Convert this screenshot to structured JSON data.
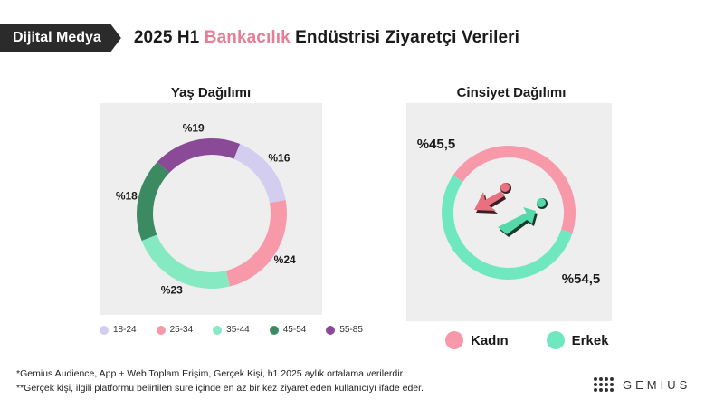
{
  "header": {
    "tag": "Dijital Medya",
    "title_prefix": "2025 H1",
    "title_accent": "Bankacılık",
    "title_suffix": "Endüstrisi Ziyaretçi Verileri"
  },
  "colors": {
    "c18_24": "#d3cdf0",
    "c25_34": "#f799a8",
    "c35_44": "#85eac1",
    "c45_54": "#3c8a62",
    "c55_85": "#8a4a98",
    "female": "#f799a8",
    "male": "#6fe8c0",
    "icon_female": "#e8707f",
    "icon_male": "#56d9aa",
    "accent": "#e57f95"
  },
  "icons": [
    "female-symbol-icon",
    "male-symbol-icon"
  ],
  "chart_data": [
    {
      "type": "pie",
      "style": "donut",
      "title": "Yaş Dağılımı",
      "categories": [
        "18-24",
        "25-34",
        "35-44",
        "45-54",
        "55-85"
      ],
      "values": [
        16,
        24,
        23,
        18,
        19
      ],
      "labels": [
        "%16",
        "%24",
        "%23",
        "%18",
        "%19"
      ],
      "legend_position": "bottom"
    },
    {
      "type": "pie",
      "style": "donut",
      "title": "Cinsiyet Dağılımı",
      "categories": [
        "Kadın",
        "Erkek"
      ],
      "values": [
        45.5,
        54.5
      ],
      "labels": [
        "%45,5",
        "%54,5"
      ],
      "legend_position": "bottom"
    }
  ],
  "footnotes": [
    "*Gemius Audience, App + Web Toplam Erişim, Gerçek Kişi, h1 2025 aylık ortalama verilerdir.",
    "**Gerçek kişi, ilgili platformu belirtilen süre içinde en az bir kez ziyaret eden kullanıcıyı ifade eder."
  ],
  "brand": "GEMIUS"
}
